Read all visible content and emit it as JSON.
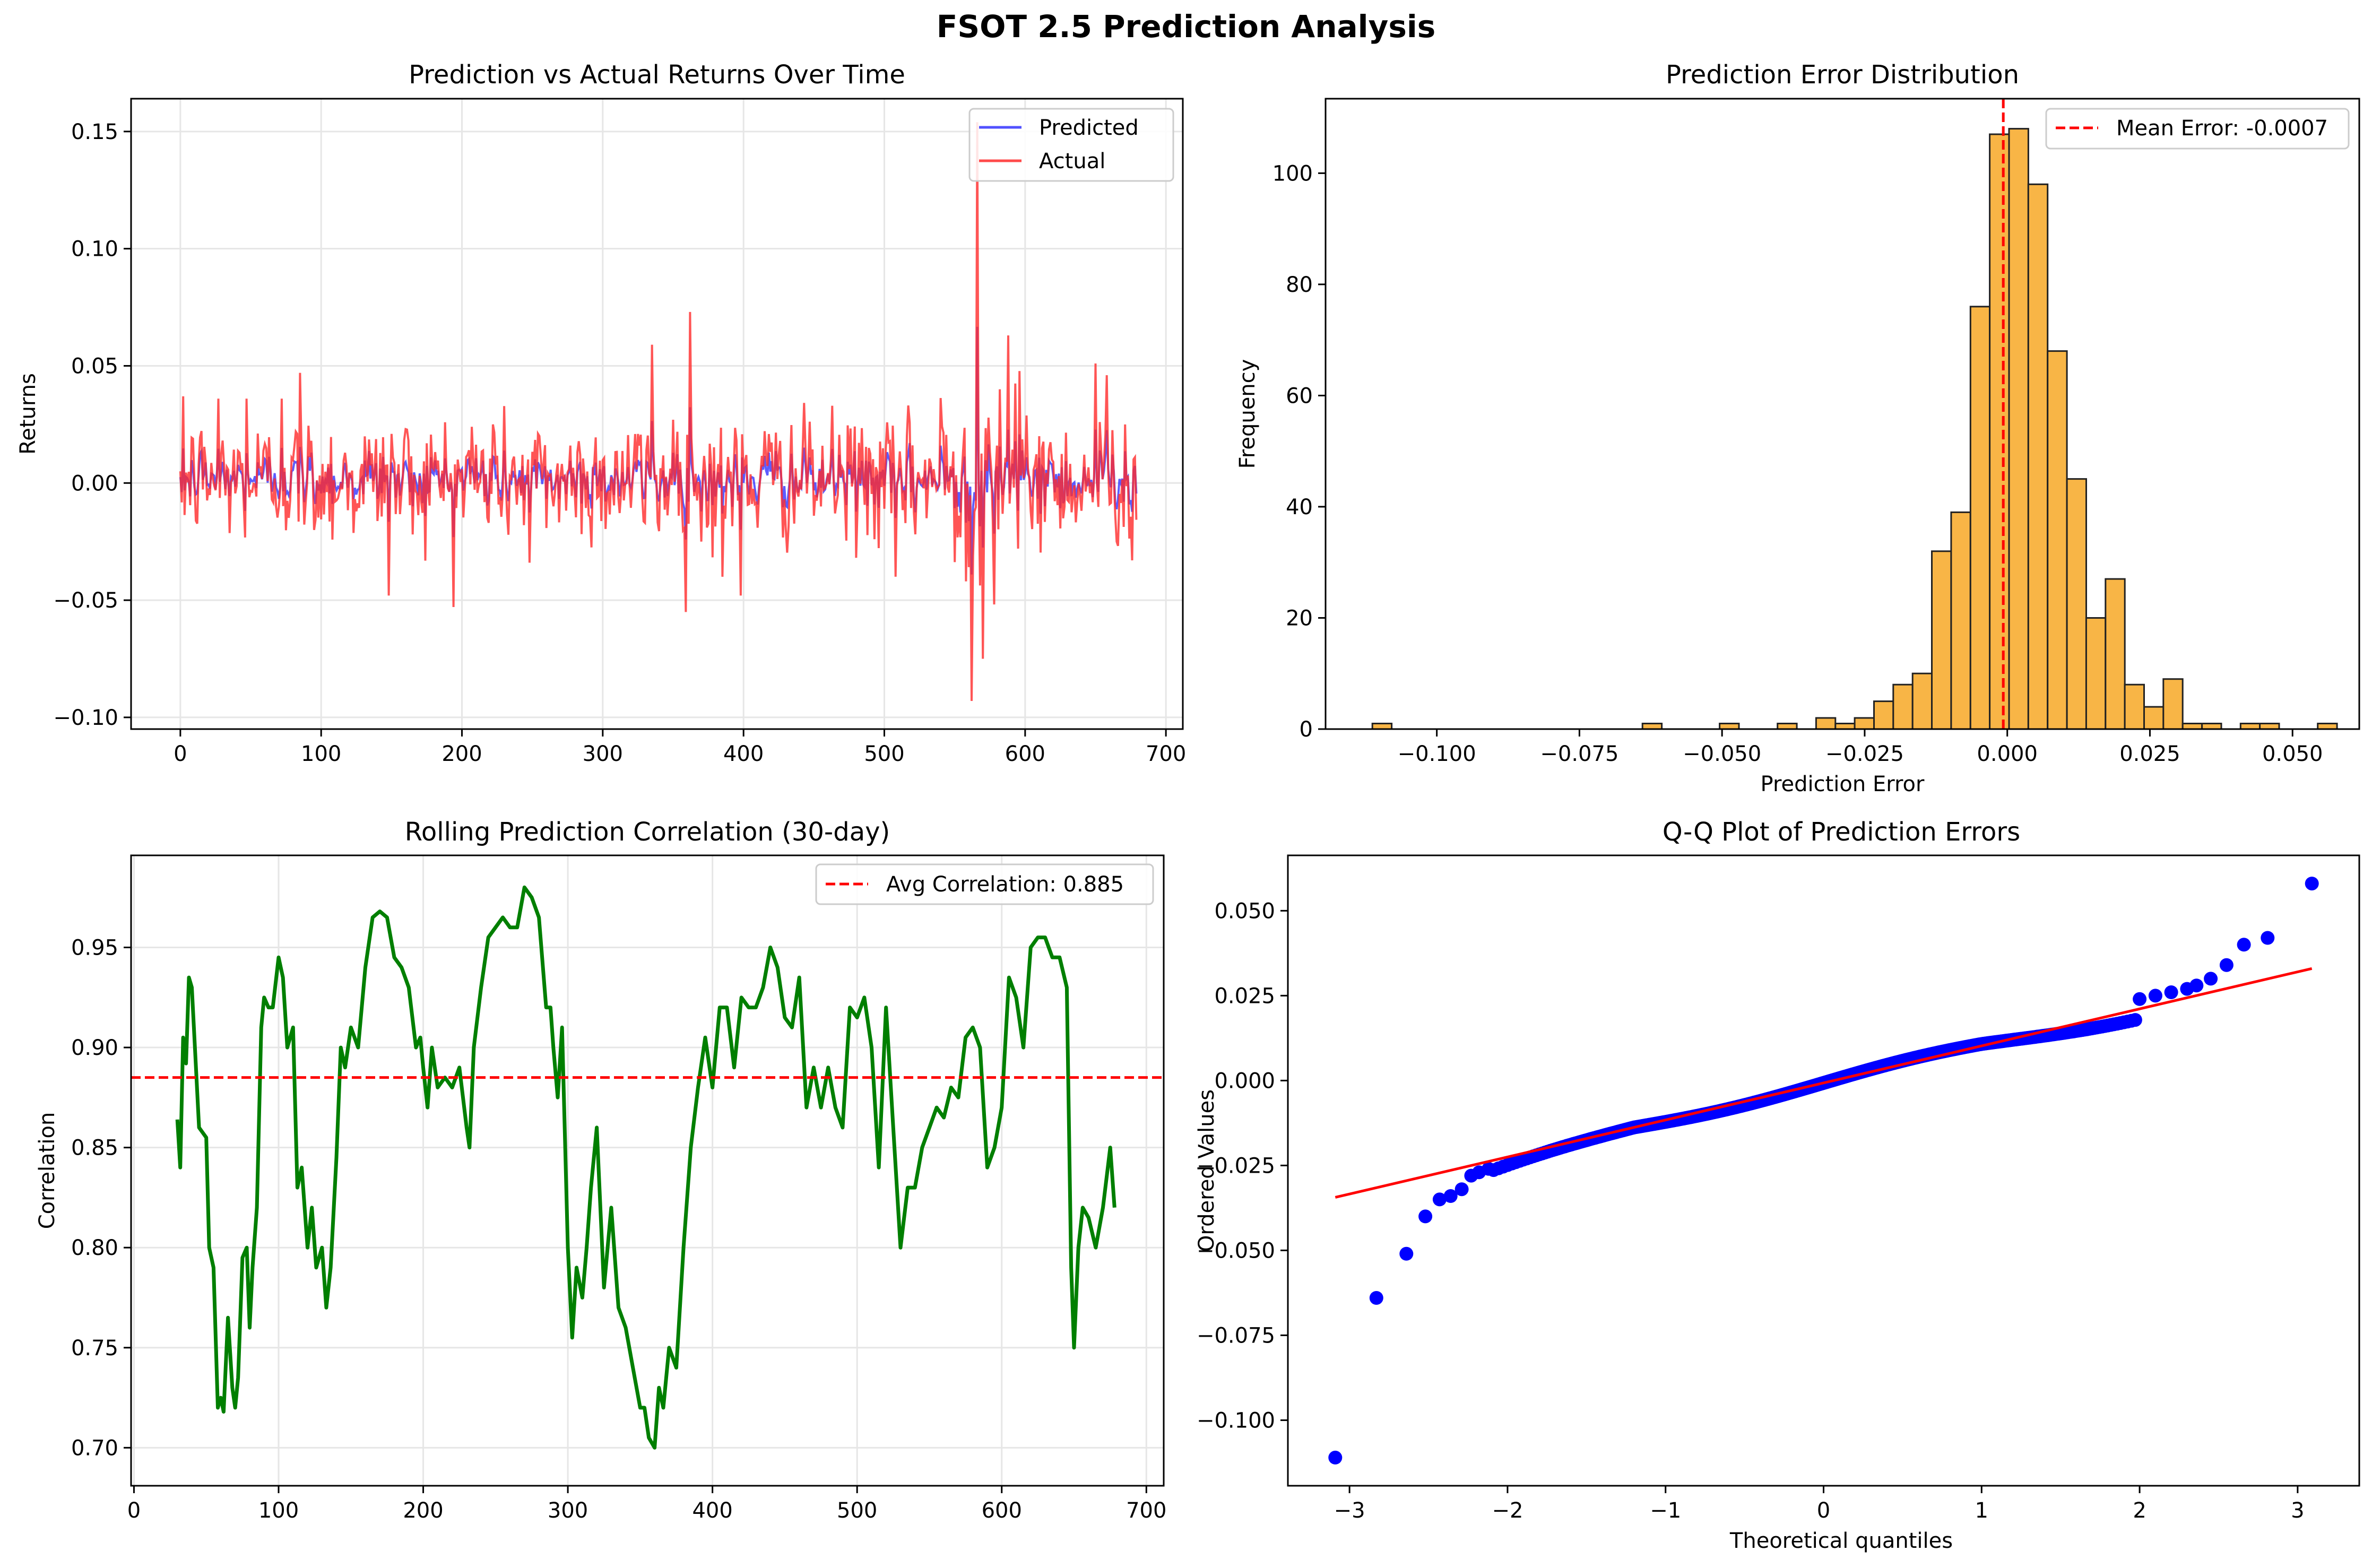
{
  "figure": {
    "title": "FSOT 2.5 Prediction Analysis"
  },
  "colors": {
    "predicted": "#3333ff",
    "actual": "#ff2a2a",
    "histogram": "#f8b13c",
    "rolling": "#007f00",
    "qq_points": "#0000ff",
    "reference": "#ff0000",
    "grid": "#e6e6e6"
  },
  "chart_data": [
    {
      "id": "returns",
      "type": "line",
      "title": "Prediction vs Actual Returns Over Time",
      "xlabel": "",
      "ylabel": "Returns",
      "xlim": [
        -35,
        712
      ],
      "ylim": [
        -0.105,
        0.164
      ],
      "xticks": [
        0,
        100,
        200,
        300,
        400,
        500,
        600,
        700
      ],
      "yticks": [
        -0.1,
        -0.05,
        0.0,
        0.05,
        0.1,
        0.15
      ],
      "ytick_labels": [
        "−0.10",
        "−0.05",
        "0.00",
        "0.05",
        "0.10",
        "0.15"
      ],
      "legend": {
        "placement": "top-right",
        "entries": [
          "Predicted",
          "Actual"
        ]
      },
      "series": [
        {
          "name": "Predicted",
          "n_points": 680,
          "mean": 0.0015,
          "std_approx": 0.006
        },
        {
          "name": "Actual",
          "n_points": 680,
          "mean": 0.0016,
          "std_approx": 0.0135,
          "spikes": [
            [
              0,
              0.005
            ],
            [
              2,
              0.037
            ],
            [
              27,
              0.036
            ],
            [
              47,
              0.036
            ],
            [
              72,
              0.036
            ],
            [
              85,
              0.047
            ],
            [
              148,
              -0.048
            ],
            [
              160,
              0.023
            ],
            [
              207,
              0.024
            ],
            [
              222,
              0.025
            ],
            [
              248,
              -0.034
            ],
            [
              335,
              0.059
            ],
            [
              350,
              0.027
            ],
            [
              362,
              0.073
            ],
            [
              370,
              -0.025
            ],
            [
              385,
              -0.04
            ],
            [
              398,
              -0.048
            ],
            [
              508,
              -0.04
            ],
            [
              562,
              -0.093
            ],
            [
              566,
              0.154
            ],
            [
              570,
              -0.075
            ],
            [
              582,
              0.04
            ],
            [
              588,
              0.063
            ],
            [
              595,
              -0.028
            ],
            [
              610,
              0.02
            ],
            [
              650,
              0.051
            ],
            [
              658,
              0.046
            ],
            [
              676,
              -0.033
            ],
            [
              678,
              0.011
            ]
          ]
        }
      ]
    },
    {
      "id": "error_hist",
      "type": "bar",
      "title": "Prediction Error Distribution",
      "xlabel": "Prediction Error",
      "ylabel": "Frequency",
      "xlim": [
        -0.1195,
        0.0617
      ],
      "ylim": [
        0,
        113.4
      ],
      "xticks": [
        -0.1,
        -0.075,
        -0.05,
        -0.025,
        0.0,
        0.025,
        0.05
      ],
      "xtick_labels": [
        "−0.100",
        "−0.075",
        "−0.050",
        "−0.025",
        "0.000",
        "0.025",
        "0.050"
      ],
      "yticks": [
        0,
        20,
        40,
        60,
        80,
        100
      ],
      "bin_start": -0.1113,
      "bin_width": 0.003382,
      "counts": [
        1,
        0,
        0,
        0,
        0,
        0,
        0,
        0,
        0,
        0,
        0,
        0,
        0,
        0,
        1,
        0,
        0,
        0,
        1,
        0,
        0,
        1,
        0,
        2,
        1,
        2,
        5,
        8,
        10,
        32,
        39,
        76,
        107,
        108,
        98,
        68,
        45,
        20,
        27,
        8,
        4,
        9,
        1,
        1,
        0,
        1,
        1,
        0,
        0,
        1
      ],
      "mean_error": -0.0007,
      "legend": {
        "placement": "top-right",
        "entries": [
          "Mean Error: -0.0007"
        ]
      }
    },
    {
      "id": "rolling_corr",
      "type": "line",
      "title": "Rolling Prediction Correlation (30-day)",
      "xlabel": "",
      "ylabel": "Correlation",
      "xlim": [
        -2,
        712
      ],
      "ylim": [
        0.681,
        0.996
      ],
      "xticks": [
        0,
        100,
        200,
        300,
        400,
        500,
        600,
        700
      ],
      "yticks": [
        0.7,
        0.75,
        0.8,
        0.85,
        0.9,
        0.95
      ],
      "ytick_labels": [
        "0.70",
        "0.75",
        "0.80",
        "0.85",
        "0.90",
        "0.95"
      ],
      "avg_correlation": 0.885,
      "legend": {
        "placement": "top-right",
        "entries": [
          "Avg Correlation: 0.885"
        ]
      },
      "series": [
        {
          "name": "",
          "x": [
            30,
            32,
            34,
            36,
            38,
            40,
            45,
            50,
            52,
            55,
            58,
            60,
            62,
            65,
            68,
            70,
            72,
            75,
            78,
            80,
            82,
            85,
            88,
            90,
            93,
            96,
            100,
            103,
            106,
            110,
            113,
            116,
            120,
            123,
            126,
            130,
            133,
            136,
            140,
            143,
            146,
            150,
            155,
            160,
            165,
            170,
            175,
            180,
            185,
            190,
            195,
            198,
            200,
            203,
            206,
            210,
            215,
            220,
            225,
            230,
            232,
            235,
            240,
            245,
            250,
            255,
            260,
            265,
            270,
            275,
            280,
            285,
            288,
            290,
            293,
            296,
            300,
            303,
            306,
            310,
            313,
            316,
            320,
            325,
            330,
            335,
            340,
            345,
            350,
            353,
            356,
            360,
            363,
            366,
            370,
            375,
            380,
            385,
            390,
            395,
            400,
            405,
            410,
            415,
            420,
            425,
            430,
            435,
            440,
            445,
            450,
            455,
            460,
            465,
            470,
            475,
            480,
            485,
            490,
            495,
            500,
            505,
            510,
            515,
            520,
            525,
            530,
            535,
            540,
            545,
            550,
            555,
            560,
            565,
            570,
            575,
            580,
            585,
            590,
            595,
            600,
            605,
            610,
            615,
            620,
            625,
            630,
            635,
            640,
            645,
            648,
            650,
            653,
            656,
            660,
            665,
            670,
            675,
            678
          ],
          "values": [
            0.864,
            0.84,
            0.905,
            0.892,
            0.935,
            0.93,
            0.86,
            0.855,
            0.8,
            0.79,
            0.72,
            0.725,
            0.718,
            0.765,
            0.73,
            0.72,
            0.735,
            0.795,
            0.8,
            0.76,
            0.79,
            0.82,
            0.91,
            0.925,
            0.92,
            0.92,
            0.945,
            0.935,
            0.9,
            0.91,
            0.83,
            0.84,
            0.8,
            0.82,
            0.79,
            0.8,
            0.77,
            0.79,
            0.845,
            0.9,
            0.89,
            0.91,
            0.9,
            0.94,
            0.965,
            0.968,
            0.965,
            0.945,
            0.94,
            0.93,
            0.9,
            0.905,
            0.89,
            0.87,
            0.9,
            0.88,
            0.885,
            0.88,
            0.89,
            0.86,
            0.85,
            0.9,
            0.93,
            0.955,
            0.96,
            0.965,
            0.96,
            0.96,
            0.98,
            0.975,
            0.965,
            0.92,
            0.92,
            0.9,
            0.875,
            0.91,
            0.8,
            0.755,
            0.79,
            0.775,
            0.8,
            0.83,
            0.86,
            0.78,
            0.82,
            0.77,
            0.76,
            0.74,
            0.72,
            0.72,
            0.705,
            0.7,
            0.73,
            0.72,
            0.75,
            0.74,
            0.8,
            0.85,
            0.88,
            0.905,
            0.88,
            0.92,
            0.92,
            0.89,
            0.925,
            0.92,
            0.92,
            0.93,
            0.95,
            0.94,
            0.915,
            0.91,
            0.935,
            0.87,
            0.89,
            0.87,
            0.89,
            0.87,
            0.86,
            0.92,
            0.915,
            0.925,
            0.9,
            0.84,
            0.92,
            0.86,
            0.8,
            0.83,
            0.83,
            0.85,
            0.86,
            0.87,
            0.865,
            0.88,
            0.875,
            0.905,
            0.91,
            0.9,
            0.84,
            0.85,
            0.87,
            0.935,
            0.925,
            0.9,
            0.95,
            0.955,
            0.955,
            0.945,
            0.945,
            0.93,
            0.79,
            0.75,
            0.8,
            0.82,
            0.815,
            0.8,
            0.82,
            0.85,
            0.82
          ]
        }
      ]
    },
    {
      "id": "qq_plot",
      "type": "scatter",
      "title": "Q-Q Plot of Prediction Errors",
      "xlabel": "Theoretical quantiles",
      "ylabel": "Ordered Values",
      "xlim": [
        -3.39,
        3.39
      ],
      "ylim": [
        -0.1193,
        0.0663
      ],
      "xticks": [
        -3,
        -2,
        -1,
        0,
        1,
        2,
        3
      ],
      "xtick_labels": [
        "−3",
        "−2",
        "−1",
        "0",
        "1",
        "2",
        "3"
      ],
      "yticks": [
        -0.1,
        -0.075,
        -0.05,
        -0.025,
        0.0,
        0.025,
        0.05
      ],
      "ytick_labels": [
        "−0.100",
        "−0.075",
        "−0.050",
        "−0.025",
        "0.000",
        "0.025",
        "0.050"
      ],
      "n_points": 680,
      "reference_line": {
        "intercept": -0.0007,
        "slope": 0.0109,
        "x_range": [
          -3.09,
          3.09
        ]
      },
      "outlier_points": [
        [
          -3.09,
          -0.111
        ],
        [
          -2.83,
          -0.064
        ],
        [
          -2.64,
          -0.051
        ],
        [
          -2.52,
          -0.04
        ],
        [
          -2.43,
          -0.035
        ],
        [
          -2.36,
          -0.034
        ],
        [
          -2.29,
          -0.032
        ],
        [
          -2.23,
          -0.028
        ],
        [
          -2.18,
          -0.027
        ],
        [
          -2.12,
          -0.026
        ],
        [
          2.0,
          0.024
        ],
        [
          2.1,
          0.025
        ],
        [
          2.2,
          0.026
        ],
        [
          2.3,
          0.027
        ],
        [
          2.36,
          0.028
        ],
        [
          2.45,
          0.03
        ],
        [
          2.55,
          0.034
        ],
        [
          2.66,
          0.04
        ],
        [
          2.81,
          0.042
        ],
        [
          3.09,
          0.058
        ]
      ]
    }
  ]
}
